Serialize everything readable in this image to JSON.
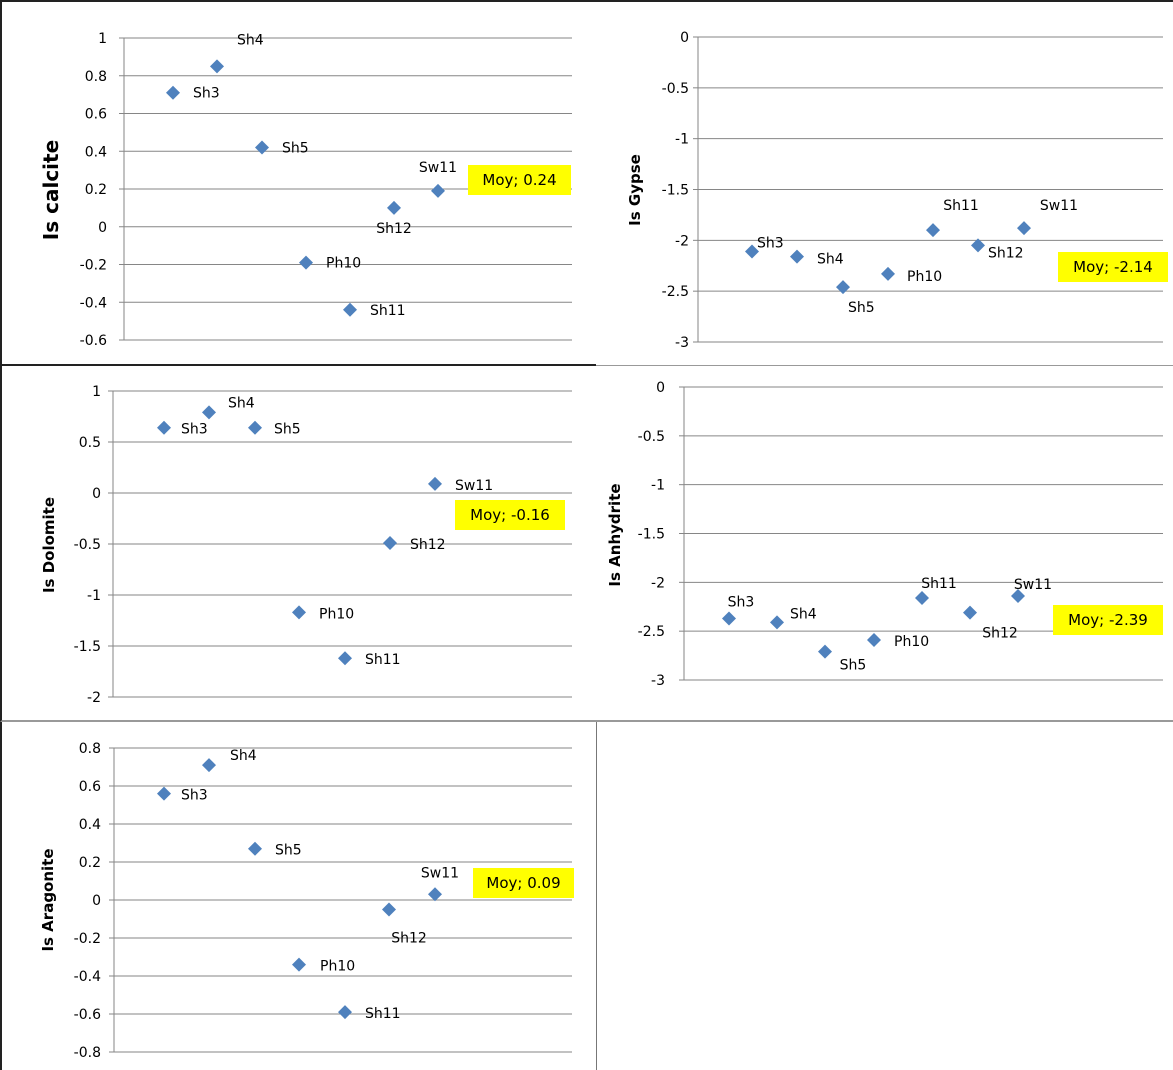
{
  "colors": {
    "marker": "#4F81BD",
    "highlight": "#FFFF00",
    "grid": "#868686",
    "axis": "#868686",
    "panel_border": "#808080"
  },
  "chart_data": [
    {
      "type": "scatter",
      "title": "",
      "xlabel": "",
      "ylabel": "Is calcite",
      "ylim": [
        -0.6,
        1
      ],
      "ystep": 0.2,
      "yticks": [
        "1",
        "0.8",
        "0.6",
        "0.4",
        "0.2",
        "0",
        "-0.2",
        "-0.4",
        "-0.6"
      ],
      "grid": true,
      "points": [
        {
          "label": "Sh3",
          "x": 1,
          "y": 0.71
        },
        {
          "label": "Sh4",
          "x": 2,
          "y": 0.85
        },
        {
          "label": "Sh5",
          "x": 3,
          "y": 0.42
        },
        {
          "label": "Ph10",
          "x": 4,
          "y": -0.19
        },
        {
          "label": "Sh11",
          "x": 5,
          "y": -0.44
        },
        {
          "label": "Sh12",
          "x": 6,
          "y": 0.1
        },
        {
          "label": "Sw11",
          "x": 7,
          "y": 0.19
        }
      ],
      "annotation": "Moy; 0.24"
    },
    {
      "type": "scatter",
      "title": "",
      "xlabel": "",
      "ylabel": "Is Gypse",
      "ylim": [
        -3,
        0
      ],
      "ystep": 0.5,
      "yticks": [
        "0",
        "-0.5",
        "-1",
        "-1.5",
        "-2",
        "-2.5",
        "-3"
      ],
      "grid": true,
      "points": [
        {
          "label": "Sh3",
          "x": 1,
          "y": -2.11
        },
        {
          "label": "Sh4",
          "x": 2,
          "y": -2.16
        },
        {
          "label": "Sh5",
          "x": 3,
          "y": -2.46
        },
        {
          "label": "Ph10",
          "x": 4,
          "y": -2.33
        },
        {
          "label": "Sh11",
          "x": 5,
          "y": -1.9
        },
        {
          "label": "Sh12",
          "x": 6,
          "y": -2.05
        },
        {
          "label": "Sw11",
          "x": 7,
          "y": -1.88
        }
      ],
      "annotation": "Moy; -2.14"
    },
    {
      "type": "scatter",
      "title": "",
      "xlabel": "",
      "ylabel": "Is Dolomite",
      "ylim": [
        -2,
        1
      ],
      "ystep": 0.5,
      "yticks": [
        "1",
        "0.5",
        "0",
        "-0.5",
        "-1",
        "-1.5",
        "-2"
      ],
      "grid": true,
      "points": [
        {
          "label": "Sh3",
          "x": 1,
          "y": 0.64
        },
        {
          "label": "Sh4",
          "x": 2,
          "y": 0.79
        },
        {
          "label": "Sh5",
          "x": 3,
          "y": 0.64
        },
        {
          "label": "Ph10",
          "x": 4,
          "y": -1.17
        },
        {
          "label": "Sh11",
          "x": 5,
          "y": -1.62
        },
        {
          "label": "Sh12",
          "x": 6,
          "y": -0.49
        },
        {
          "label": "Sw11",
          "x": 7,
          "y": 0.09
        }
      ],
      "annotation": "Moy; -0.16"
    },
    {
      "type": "scatter",
      "title": "",
      "xlabel": "",
      "ylabel": "Is Anhydrite",
      "ylim": [
        -3,
        0
      ],
      "ystep": 0.5,
      "yticks": [
        "0",
        "-0.5",
        "-1",
        "-1.5",
        "-2",
        "-2.5",
        "-3"
      ],
      "grid": true,
      "points": [
        {
          "label": "Sh3",
          "x": 1,
          "y": -2.37
        },
        {
          "label": "Sh4",
          "x": 2,
          "y": -2.41
        },
        {
          "label": "Sh5",
          "x": 3,
          "y": -2.71
        },
        {
          "label": "Ph10",
          "x": 4,
          "y": -2.59
        },
        {
          "label": "Sh11",
          "x": 5,
          "y": -2.16
        },
        {
          "label": "Sh12",
          "x": 6,
          "y": -2.31
        },
        {
          "label": "Sw11",
          "x": 7,
          "y": -2.14
        }
      ],
      "annotation": "Moy; -2.39"
    },
    {
      "type": "scatter",
      "title": "",
      "xlabel": "",
      "ylabel": "Is Aragonite",
      "ylim": [
        -0.8,
        0.8
      ],
      "ystep": 0.2,
      "yticks": [
        "0.8",
        "0.6",
        "0.4",
        "0.2",
        "0",
        "-0.2",
        "-0.4",
        "-0.6",
        "-0.8"
      ],
      "grid": true,
      "points": [
        {
          "label": "Sh3",
          "x": 1,
          "y": 0.56
        },
        {
          "label": "Sh4",
          "x": 2,
          "y": 0.71
        },
        {
          "label": "Sh5",
          "x": 3,
          "y": 0.27
        },
        {
          "label": "Ph10",
          "x": 4,
          "y": -0.34
        },
        {
          "label": "Sh11",
          "x": 5,
          "y": -0.59
        },
        {
          "label": "Sh12",
          "x": 6,
          "y": -0.05
        },
        {
          "label": "Sw11",
          "x": 7,
          "y": 0.03
        }
      ],
      "annotation": "Moy; 0.09"
    }
  ]
}
